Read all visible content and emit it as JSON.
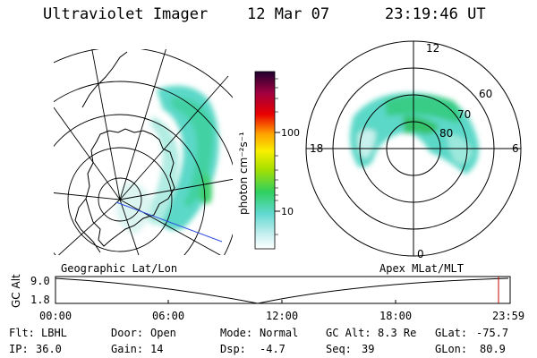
{
  "header": {
    "instrument": "Ultraviolet Imager",
    "date": "12 Mar 07",
    "time": "23:19:46 UT"
  },
  "colorbar": {
    "unit_label": "photon cm⁻²s⁻¹",
    "ticks": [
      "100",
      "10"
    ],
    "scale": "log",
    "colors": [
      "#ffffff",
      "#a0e8e0",
      "#30c8c8",
      "#30d860",
      "#e0f000",
      "#ffa000",
      "#e00000",
      "#900040",
      "#200040"
    ]
  },
  "geo_map": {
    "label": "Geographic Lat/Lon"
  },
  "polar_map": {
    "label": "Apex MLat/MLT",
    "mlt_labels": {
      "top": "12",
      "bottom": "0",
      "left": "18",
      "right": "6"
    },
    "lat_labels": [
      "60",
      "70",
      "80"
    ]
  },
  "gc_alt_plot": {
    "ylabel": "GC Alt",
    "yticks": [
      "9.0",
      "1.8"
    ],
    "xticks": [
      "00:00",
      "06:00",
      "12:00",
      "18:00",
      "23:59"
    ],
    "current_time_color": "#c00000"
  },
  "info": {
    "filter_label": "Flt:",
    "filter_value": "LBHL",
    "door_label": "Door:",
    "door_value": "Open",
    "mode_label": "Mode:",
    "mode_value": "Normal",
    "gcalt_label": "GC Alt:",
    "gcalt_value": "8.3 Re",
    "glat_label": "GLat:",
    "glat_value": "-75.7",
    "ip_label": "IP:",
    "ip_value": "36.0",
    "gain_label": "Gain:",
    "gain_value": "14",
    "dsp_label": "Dsp:",
    "dsp_value": "-4.7",
    "seq_label": "Seq:",
    "seq_value": "39",
    "glon_label": "GLon:",
    "glon_value": "80.9"
  }
}
